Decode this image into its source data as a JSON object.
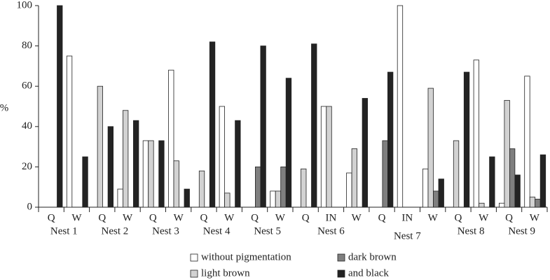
{
  "chart_data": {
    "type": "bar",
    "y_label": "%",
    "ylim": [
      0,
      100
    ],
    "yticks": [
      0,
      20,
      40,
      60,
      80,
      100
    ],
    "groups": [
      {
        "name": "Nest 1",
        "categories": [
          "Q",
          "W"
        ]
      },
      {
        "name": "Nest 2",
        "categories": [
          "Q",
          "W"
        ]
      },
      {
        "name": "Nest 3",
        "categories": [
          "Q",
          "W"
        ]
      },
      {
        "name": "Nest 4",
        "categories": [
          "Q",
          "W"
        ]
      },
      {
        "name": "Nest 5",
        "categories": [
          "Q",
          "W"
        ]
      },
      {
        "name": "Nest 6",
        "categories": [
          "Q",
          "IN",
          "W"
        ]
      },
      {
        "name": "Nest 7",
        "categories": [
          "Q",
          "IN",
          "W"
        ]
      },
      {
        "name": "Nest 8",
        "categories": [
          "Q",
          "W"
        ]
      },
      {
        "name": "Nest 9",
        "categories": [
          "Q",
          "W"
        ]
      }
    ],
    "series": [
      {
        "name": "without pigmentation",
        "color": "#ffffff",
        "values": [
          0,
          75,
          0,
          9,
          33,
          68,
          0,
          50,
          0,
          8,
          0,
          50,
          17,
          0,
          100,
          19,
          0,
          73,
          2,
          65
        ]
      },
      {
        "name": "light brown",
        "color": "#d2d2d2",
        "values": [
          0,
          0,
          60,
          48,
          33,
          23,
          18,
          7,
          0,
          8,
          19,
          50,
          29,
          0,
          0,
          59,
          33,
          2,
          53,
          5
        ]
      },
      {
        "name": "dark brown",
        "color": "#7f7f7f",
        "values": [
          0,
          0,
          0,
          0,
          0,
          0,
          0,
          0,
          20,
          20,
          0,
          0,
          0,
          33,
          0,
          8,
          0,
          0,
          29,
          4
        ]
      },
      {
        "name": "and black",
        "color": "#232323",
        "values": [
          100,
          25,
          40,
          43,
          33,
          9,
          82,
          43,
          80,
          64,
          81,
          0,
          54,
          67,
          0,
          14,
          67,
          25,
          16,
          26
        ]
      }
    ]
  }
}
